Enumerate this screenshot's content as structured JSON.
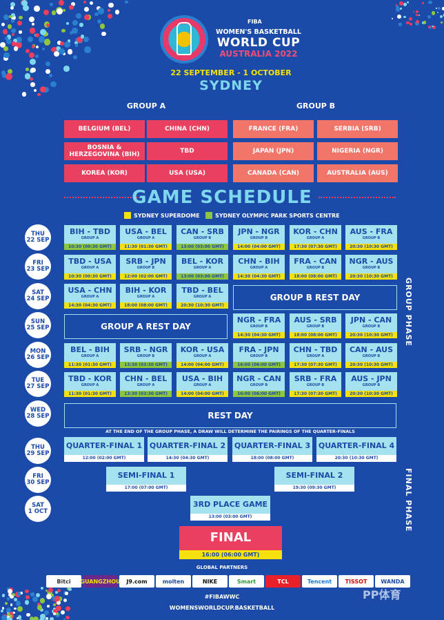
{
  "header": {
    "fiba": "FIBA",
    "event_line1": "WOMEN'S BASKETBALL",
    "event_line2": "WORLD CUP",
    "event_line3": "AUSTRALIA 2022",
    "dates": "22 SEPTEMBER - 1 OCTOBER",
    "city": "SYDNEY"
  },
  "groups": {
    "a_title": "GROUP A",
    "b_title": "GROUP B",
    "a": [
      "BELGIUM (BEL)",
      "CHINA (CHN)",
      "BOSNIA & HERZEGOVINA (BIH)",
      "TBD",
      "KOREA (KOR)",
      "USA (USA)"
    ],
    "b": [
      "FRANCE (FRA)",
      "SERBIA (SRB)",
      "JAPAN (JPN)",
      "NIGERIA (NGR)",
      "CANADA (CAN)",
      "AUSTRALIA (AUS)"
    ]
  },
  "schedule_title": "GAME SCHEDULE",
  "legend": {
    "superdome": "SYDNEY SUPERDOME",
    "olympic": "SYDNEY OLYMPIC PARK SPORTS CENTRE",
    "superdome_color": "#f5e10d",
    "olympic_color": "#8fc640"
  },
  "days": [
    {
      "dow": "THU",
      "date": "22 SEP"
    },
    {
      "dow": "FRI",
      "date": "23 SEP"
    },
    {
      "dow": "SAT",
      "date": "24 SEP"
    },
    {
      "dow": "SUN",
      "date": "25 SEP"
    },
    {
      "dow": "MON",
      "date": "26 SEP"
    },
    {
      "dow": "TUE",
      "date": "27 SEP"
    },
    {
      "dow": "WED",
      "date": "28 SEP"
    },
    {
      "dow": "THU",
      "date": "29 SEP"
    },
    {
      "dow": "FRI",
      "date": "30 SEP"
    },
    {
      "dow": "SAT",
      "date": "1 OCT"
    }
  ],
  "games": [
    {
      "m": "BIH - TBD",
      "g": "GROUP A",
      "t": "10:30 (00:30 GMT)",
      "v": "g"
    },
    {
      "m": "USA - BEL",
      "g": "GROUP A",
      "t": "11:30 (01:30 GMT)",
      "v": "y"
    },
    {
      "m": "CAN - SRB",
      "g": "GROUP B",
      "t": "13:00 (03:00 GMT)",
      "v": "g"
    },
    {
      "m": "JPN - NGR",
      "g": "GROUP B",
      "t": "14:00 (04:00 GMT)",
      "v": "y"
    },
    {
      "m": "KOR - CHN",
      "g": "GROUP A",
      "t": "17:30 (07:30 GMT)",
      "v": "y"
    },
    {
      "m": "AUS - FRA",
      "g": "GROUP B",
      "t": "20:30 (10:30 GMT)",
      "v": "y"
    },
    {
      "m": "TBD - USA",
      "g": "GROUP A",
      "t": "10:30 (00:30 GMT)",
      "v": "y"
    },
    {
      "m": "SRB - JPN",
      "g": "GROUP B",
      "t": "12:00 (02:00 GMT)",
      "v": "y"
    },
    {
      "m": "BEL - KOR",
      "g": "GROUP A",
      "t": "13:00 (03:00 GMT)",
      "v": "g"
    },
    {
      "m": "CHN - BIH",
      "g": "GROUP A",
      "t": "14:30 (04:30 GMT)",
      "v": "y"
    },
    {
      "m": "FRA - CAN",
      "g": "GROUP B",
      "t": "18:00 (08:00 GMT)",
      "v": "y"
    },
    {
      "m": "NGR - AUS",
      "g": "GROUP B",
      "t": "20:30 (10:30 GMT)",
      "v": "y"
    },
    {
      "m": "USA - CHN",
      "g": "GROUP A",
      "t": "14:30 (04:30 GMT)",
      "v": "y"
    },
    {
      "m": "BIH - KOR",
      "g": "GROUP A",
      "t": "18:00 (08:00 GMT)",
      "v": "y"
    },
    {
      "m": "TBD - BEL",
      "g": "GROUP A",
      "t": "20:30 (10:30 GMT)",
      "v": "y"
    },
    {
      "m": "NGR - FRA",
      "g": "GROUP B",
      "t": "14:30 (04:30 GMT)",
      "v": "y"
    },
    {
      "m": "AUS - SRB",
      "g": "GROUP B",
      "t": "18:00 (08:00 GMT)",
      "v": "y"
    },
    {
      "m": "JPN - CAN",
      "g": "GROUP B",
      "t": "20:30 (10:30 GMT)",
      "v": "y"
    },
    {
      "m": "BEL - BIH",
      "g": "GROUP A",
      "t": "11:30 (01:30 GMT)",
      "v": "y"
    },
    {
      "m": "SRB - NGR",
      "g": "GROUP B",
      "t": "13:30 (03:30 GMT)",
      "v": "g"
    },
    {
      "m": "KOR - USA",
      "g": "GROUP A",
      "t": "14:00 (04:00 GMT)",
      "v": "y"
    },
    {
      "m": "FRA - JPN",
      "g": "GROUP B",
      "t": "16:00 (06:00 GMT)",
      "v": "g"
    },
    {
      "m": "CHN - TBD",
      "g": "GROUP A",
      "t": "17:30 (07:30 GMT)",
      "v": "y"
    },
    {
      "m": "CAN - AUS",
      "g": "GROUP B",
      "t": "20:30 (10:30 GMT)",
      "v": "y"
    },
    {
      "m": "TBD - KOR",
      "g": "GROUP A",
      "t": "11:30 (01:30 GMT)",
      "v": "y"
    },
    {
      "m": "CHN - BEL",
      "g": "GROUP A",
      "t": "13:30 (03:30 GMT)",
      "v": "g"
    },
    {
      "m": "USA - BIH",
      "g": "GROUP A",
      "t": "14:00 (04:00 GMT)",
      "v": "y"
    },
    {
      "m": "NGR - CAN",
      "g": "GROUP B",
      "t": "16:00 (06:00 GMT)",
      "v": "g"
    },
    {
      "m": "SRB - FRA",
      "g": "GROUP B",
      "t": "17:30 (07:30 GMT)",
      "v": "y"
    },
    {
      "m": "AUS - JPN",
      "g": "GROUP B",
      "t": "20:30 (10:30 GMT)",
      "v": "y"
    }
  ],
  "rest": {
    "group_b": "GROUP B REST DAY",
    "group_a": "GROUP A REST DAY",
    "all": "REST DAY"
  },
  "note": "AT THE END OF THE GROUP PHASE, A DRAW WILL DETERMINE THE PAIRINGS OF THE QUARTER-FINALS",
  "quarters": [
    {
      "m": "QUARTER-FINAL 1",
      "t": "12:00 (02:00 GMT)"
    },
    {
      "m": "QUARTER-FINAL 2",
      "t": "14:30 (04:30 GMT)"
    },
    {
      "m": "QUARTER-FINAL 3",
      "t": "18:00 (08:00 GMT)"
    },
    {
      "m": "QUARTER-FINAL 4",
      "t": "20:30 (10:30 GMT)"
    }
  ],
  "semis": [
    {
      "m": "SEMI-FINAL 1",
      "t": "17:00 (07:00 GMT)"
    },
    {
      "m": "SEMI-FINAL 2",
      "t": "19:30 (09:30 GMT)"
    }
  ],
  "third": {
    "m": "3RD PLACE GAME",
    "t": "13:00 (03:00 GMT)"
  },
  "final": {
    "m": "FINAL",
    "t": "16:00 (06:00 GMT)"
  },
  "phases": {
    "group": "GROUP PHASE",
    "final": "FINAL PHASE"
  },
  "partners_title": "GLOBAL PARTNERS",
  "sponsors": [
    "Bitci",
    "GUANGZHOU",
    "J9.com",
    "molten",
    "NIKE",
    "Smart",
    "TCL",
    "Tencent",
    "TISSOT",
    "WANDA"
  ],
  "hashtag": "#FIBAWWC",
  "site": "WOMENSWORLDCUP.BASKETBALL",
  "watermark": "PP体育"
}
